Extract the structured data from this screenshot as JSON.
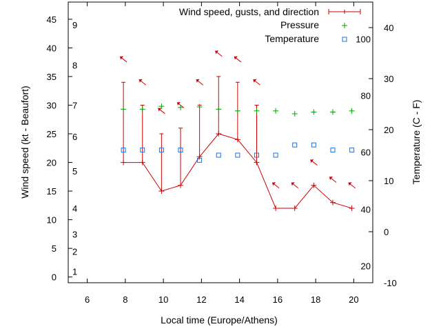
{
  "chart_data": {
    "type": "line",
    "xlabel": "Local time (Europe/Athens)",
    "ylabel": "Wind speed (kt - Beaufort)",
    "y2label": "Temperature (C - F)",
    "xlim": [
      5,
      21
    ],
    "ylim": [
      -1,
      48
    ],
    "y2lim": [
      -10,
      45
    ],
    "x_ticks": [
      "6",
      "8",
      "10",
      "12",
      "14",
      "16",
      "18",
      "20"
    ],
    "y_ticks": [
      "0",
      "5",
      "10",
      "15",
      "20",
      "25",
      "30",
      "35",
      "40",
      "45"
    ],
    "y2_ticks": [
      "-10",
      "0",
      "10",
      "20",
      "30",
      "40"
    ],
    "beaufort_labels": [
      {
        "label": "1",
        "kt": 1
      },
      {
        "label": "2",
        "kt": 4.5
      },
      {
        "label": "3",
        "kt": 7.5
      },
      {
        "label": "4",
        "kt": 12
      },
      {
        "label": "5",
        "kt": 18.5
      },
      {
        "label": "6",
        "kt": 24.5
      },
      {
        "label": "7",
        "kt": 30
      },
      {
        "label": "8",
        "kt": 37
      },
      {
        "label": "9",
        "kt": 44
      }
    ],
    "fahrenheit_labels": [
      {
        "label": "20",
        "celsius": -6.7
      },
      {
        "label": "40",
        "celsius": 4.4
      },
      {
        "label": "60",
        "celsius": 15.6
      },
      {
        "label": "80",
        "celsius": 26.7
      },
      {
        "label": "100",
        "celsius": 37.8
      }
    ],
    "legend_position": "top-right",
    "series": [
      {
        "name": "Wind speed, gusts, and direction",
        "color": "#cc0000",
        "x": [
          7.9,
          8.9,
          9.9,
          10.9,
          11.9,
          12.9,
          13.9,
          14.9,
          15.9,
          16.9,
          17.9,
          18.9,
          19.9
        ],
        "values": [
          20,
          20,
          15,
          16,
          21,
          25,
          24,
          20,
          12,
          12,
          16,
          13,
          12
        ],
        "gusts": [
          34,
          30,
          25,
          26,
          30,
          35,
          34,
          30,
          null,
          null,
          null,
          null,
          null
        ],
        "direction_arrows": [
          {
            "x": 7.9,
            "y": 38
          },
          {
            "x": 8.9,
            "y": 34
          },
          {
            "x": 9.9,
            "y": 29
          },
          {
            "x": 10.9,
            "y": 30
          },
          {
            "x": 11.9,
            "y": 34
          },
          {
            "x": 12.9,
            "y": 39
          },
          {
            "x": 13.9,
            "y": 38
          },
          {
            "x": 14.9,
            "y": 34
          },
          {
            "x": 15.9,
            "y": 16
          },
          {
            "x": 16.9,
            "y": 16
          },
          {
            "x": 17.9,
            "y": 20
          },
          {
            "x": 18.9,
            "y": 17
          },
          {
            "x": 19.9,
            "y": 16
          }
        ]
      },
      {
        "name": "Pressure",
        "color": "#00a000",
        "marker": "plus",
        "x": [
          7.9,
          8.9,
          9.9,
          10.9,
          11.9,
          12.9,
          13.9,
          14.9,
          15.9,
          16.9,
          17.9,
          18.9,
          19.9
        ],
        "values": [
          29.3,
          29.3,
          29.8,
          29.6,
          29.7,
          29.3,
          29.0,
          29.0,
          29.0,
          28.5,
          28.8,
          28.8,
          29.0
        ]
      },
      {
        "name": "Temperature",
        "color": "#1e6fd9",
        "marker": "square",
        "axis": "y2",
        "x": [
          7.9,
          8.9,
          9.9,
          10.9,
          11.9,
          12.9,
          13.9,
          14.9,
          15.9,
          16.9,
          17.9,
          18.9,
          19.9
        ],
        "values": [
          16,
          16,
          16,
          16,
          14,
          15,
          15,
          15,
          15,
          17,
          17,
          16,
          16
        ]
      }
    ]
  }
}
